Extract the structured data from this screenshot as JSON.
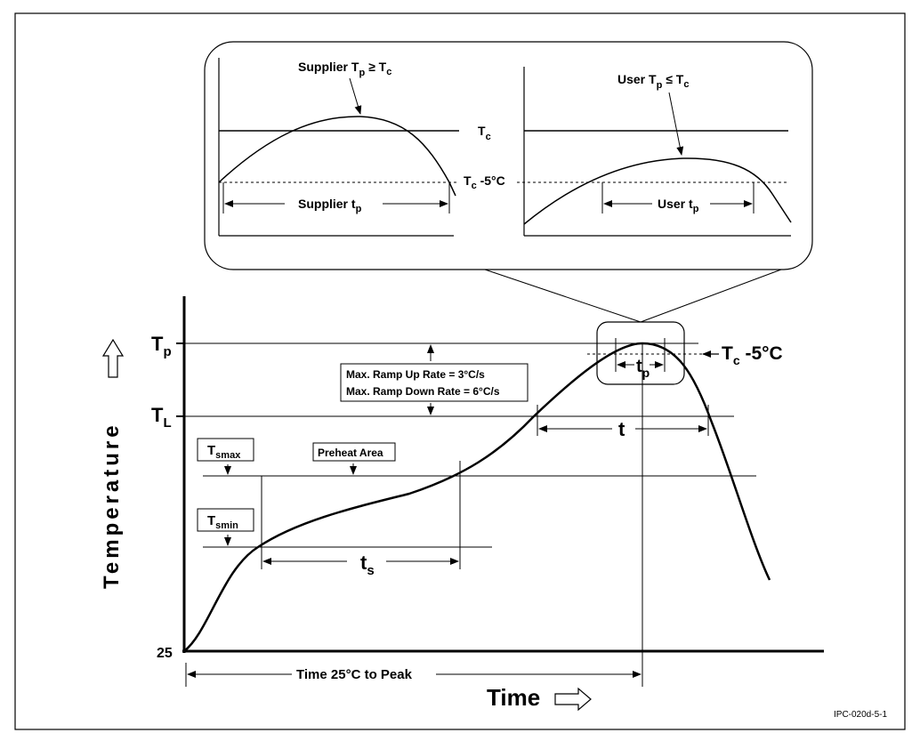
{
  "inset": {
    "left_label_main": "Supplier T",
    "left_label_sub": "p",
    "left_label_rel": " ≥ T",
    "left_label_sub2": "c",
    "right_label_main": "User T",
    "right_label_sub": "p",
    "right_label_rel": " ≤ T",
    "right_label_sub2": "c",
    "tc_main": "T",
    "tc_sub": "c",
    "tc5_main": "T",
    "tc5_sub": "c",
    "tc5_rest": " -5°C",
    "supplier_tp_main": "Supplier t",
    "supplier_tp_sub": "p",
    "user_tp_main": "User t",
    "user_tp_sub": "p"
  },
  "main": {
    "y_axis_label": "Temperature",
    "x_axis_label": "Time",
    "tp_main": "T",
    "tp_sub": "p",
    "tl_main": "T",
    "tl_sub": "L",
    "tc5_main": "T",
    "tc5_sub": "c",
    "tc5_rest": " -5°C",
    "y25": "25",
    "ramp_up": "Max. Ramp Up Rate = 3°C/s",
    "ramp_down": "Max. Ramp Down Rate = 6°C/s",
    "tsmax_main": "T",
    "tsmax_sub": "smax",
    "tsmin_main": "T",
    "tsmin_sub": "smin",
    "preheat": "Preheat Area",
    "ts_main": "t",
    "ts_sub": "s",
    "t_label": "t",
    "tp_small_main": "t",
    "tp_small_sub": "p",
    "time_to_peak": "Time 25°C to Peak",
    "figure_id": "IPC-020d-5-1"
  }
}
